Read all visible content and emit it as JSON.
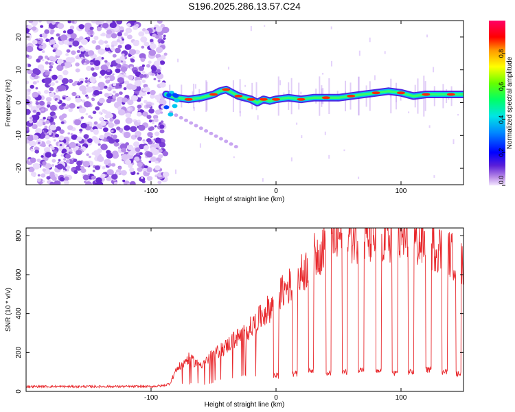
{
  "title": "S196.2025.286.13.57.C24",
  "chart_data": [
    {
      "type": "heatmap",
      "xlabel": "Height of straight line (km)",
      "ylabel": "Frequency (Hz)",
      "xlim": [
        -200,
        150
      ],
      "ylim": [
        -25,
        25
      ],
      "xticks": [
        -100,
        0,
        100
      ],
      "yticks": [
        -20,
        -10,
        0,
        10,
        20
      ],
      "colorbar": {
        "label": "Normalized spectral amplitude",
        "range": [
          0,
          1
        ],
        "ticks": [
          "0.0",
          "0.2",
          "0.4",
          "0.6",
          "0.8"
        ]
      },
      "noise_region": {
        "x_from": -200,
        "x_to": -88
      },
      "signal_track": {
        "x": [
          -88,
          -80,
          -70,
          -60,
          -50,
          -45,
          -40,
          -35,
          -30,
          -25,
          -20,
          -15,
          -10,
          -5,
          0,
          10,
          20,
          30,
          40,
          50,
          60,
          70,
          80,
          90,
          100,
          110,
          120,
          130,
          140,
          150
        ],
        "freq_hz": [
          2.5,
          1.5,
          1.0,
          1.5,
          2.5,
          3.5,
          4.0,
          3.0,
          2.0,
          1.5,
          1.0,
          0.0,
          1.0,
          0.5,
          1.0,
          1.5,
          1.0,
          1.5,
          1.5,
          1.5,
          2.0,
          2.5,
          3.0,
          3.5,
          3.0,
          2.0,
          2.5,
          2.5,
          2.5,
          2.5
        ]
      }
    },
    {
      "type": "line",
      "xlabel": "Height of straight line (km)",
      "ylabel": "SNR (10 * v/v)",
      "xlim": [
        -200,
        150
      ],
      "ylim": [
        0,
        840
      ],
      "xticks": [
        -100,
        0,
        100
      ],
      "yticks": [
        0,
        200,
        400,
        600,
        800
      ],
      "series": [
        {
          "name": "SNR",
          "color": "#e8282c",
          "x": [
            -200,
            -180,
            -160,
            -140,
            -120,
            -100,
            -90,
            -85,
            -80,
            -75,
            -70,
            -65,
            -60,
            -55,
            -50,
            -45,
            -40,
            -35,
            -30,
            -25,
            -20,
            -15,
            -10,
            -5,
            0,
            5,
            10,
            15,
            20,
            25,
            30,
            35,
            40,
            45,
            50,
            55,
            60,
            65,
            70,
            75,
            80,
            85,
            90,
            95,
            100,
            105,
            110,
            115,
            120,
            125,
            130,
            135,
            140,
            145,
            150
          ],
          "y": [
            25,
            25,
            25,
            25,
            25,
            25,
            30,
            40,
            110,
            140,
            170,
            150,
            140,
            160,
            190,
            210,
            230,
            260,
            280,
            300,
            330,
            360,
            400,
            430,
            470,
            510,
            540,
            560,
            600,
            640,
            690,
            720,
            760,
            780,
            790,
            795,
            800,
            795,
            780,
            790,
            780,
            790,
            790,
            780,
            780,
            775,
            770,
            760,
            760,
            750,
            740,
            720,
            700,
            680,
            660
          ]
        }
      ],
      "dropouts": [
        {
          "x": 0,
          "y": 80
        },
        {
          "x": 15,
          "y": 90
        },
        {
          "x": 28,
          "y": 110
        },
        {
          "x": 42,
          "y": 95
        },
        {
          "x": 55,
          "y": 100
        },
        {
          "x": 68,
          "y": 110
        },
        {
          "x": 82,
          "y": 100
        },
        {
          "x": 95,
          "y": 95
        },
        {
          "x": 108,
          "y": 100
        },
        {
          "x": 122,
          "y": 110
        },
        {
          "x": 135,
          "y": 100
        },
        {
          "x": 146,
          "y": 90
        }
      ]
    }
  ]
}
